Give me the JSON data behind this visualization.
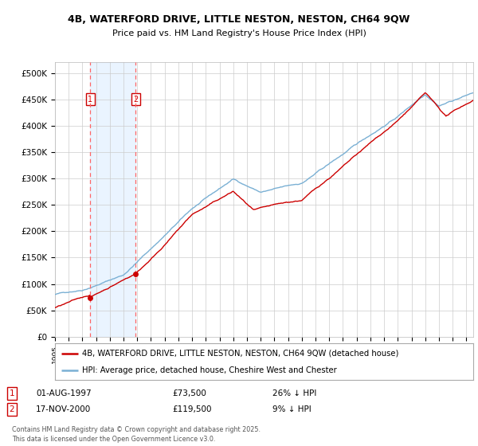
{
  "title_line1": "4B, WATERFORD DRIVE, LITTLE NESTON, NESTON, CH64 9QW",
  "title_line2": "Price paid vs. HM Land Registry's House Price Index (HPI)",
  "ylabel_ticks": [
    "£0",
    "£50K",
    "£100K",
    "£150K",
    "£200K",
    "£250K",
    "£300K",
    "£350K",
    "£400K",
    "£450K",
    "£500K"
  ],
  "ytick_values": [
    0,
    50000,
    100000,
    150000,
    200000,
    250000,
    300000,
    350000,
    400000,
    450000,
    500000
  ],
  "xlim_start": 1995.0,
  "xlim_end": 2025.5,
  "ylim": [
    0,
    520000
  ],
  "legend_line1": "4B, WATERFORD DRIVE, LITTLE NESTON, NESTON, CH64 9QW (detached house)",
  "legend_line2": "HPI: Average price, detached house, Cheshire West and Chester",
  "sale1_date": "01-AUG-1997",
  "sale1_year": 1997.58,
  "sale1_price": 73500,
  "sale1_label": "1",
  "sale2_date": "17-NOV-2000",
  "sale2_year": 2000.88,
  "sale2_price": 119500,
  "sale2_label": "2",
  "sale1_hpi_pct": "26% ↓ HPI",
  "sale2_hpi_pct": "9% ↓ HPI",
  "red_color": "#cc0000",
  "blue_color": "#7ab0d4",
  "vline_color": "#ff6666",
  "shade_color": "#ddeeff",
  "footer_text": "Contains HM Land Registry data © Crown copyright and database right 2025.\nThis data is licensed under the Open Government Licence v3.0.",
  "background_color": "#ffffff",
  "grid_color": "#cccccc"
}
